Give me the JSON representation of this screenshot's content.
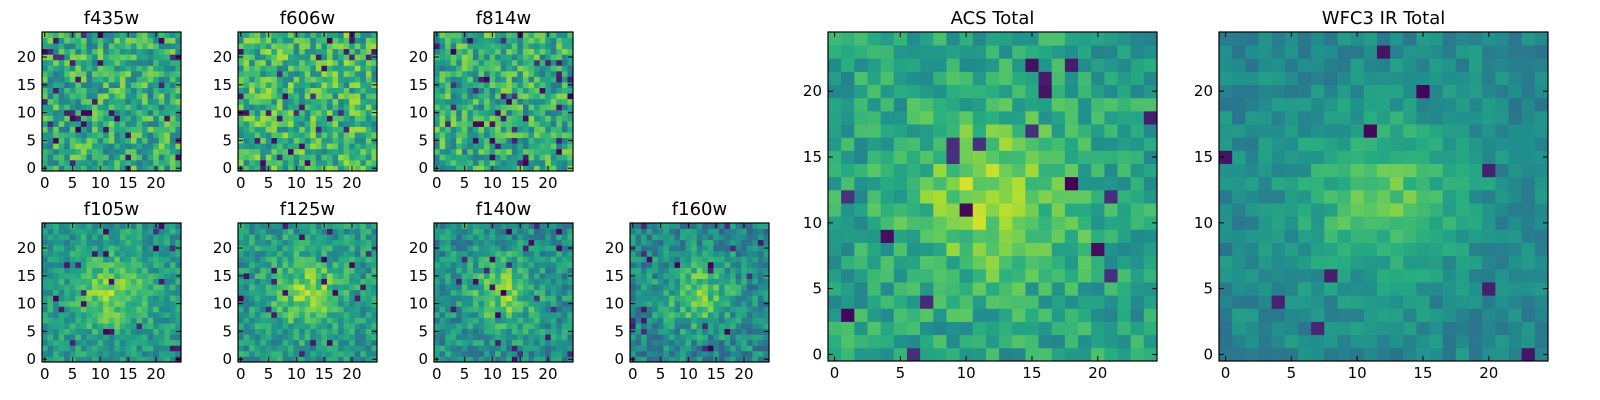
{
  "figure": {
    "colormap": "viridis",
    "palette": [
      "#440154",
      "#472c7a",
      "#3b518b",
      "#2c718e",
      "#21908d",
      "#27ad81",
      "#5cc863",
      "#aadc32",
      "#fde725"
    ]
  },
  "chart_data": [
    {
      "type": "heatmap",
      "title": "f435w",
      "grid_size": 25,
      "xlim": [
        0,
        24
      ],
      "ylim": [
        0,
        24
      ],
      "x_ticks": [
        0,
        5,
        10,
        15,
        20
      ],
      "y_ticks": [
        0,
        5,
        10,
        15,
        20
      ],
      "pattern": "noise",
      "seed": 11,
      "mean_level": 0.62,
      "noise": 0.22,
      "dark_fraction": 0.06
    },
    {
      "type": "heatmap",
      "title": "f606w",
      "grid_size": 25,
      "xlim": [
        0,
        24
      ],
      "ylim": [
        0,
        24
      ],
      "x_ticks": [
        0,
        5,
        10,
        15,
        20
      ],
      "y_ticks": [
        0,
        5,
        10,
        15,
        20
      ],
      "pattern": "noise",
      "seed": 23,
      "mean_level": 0.66,
      "noise": 0.22,
      "dark_fraction": 0.05
    },
    {
      "type": "heatmap",
      "title": "f814w",
      "grid_size": 25,
      "xlim": [
        0,
        24
      ],
      "ylim": [
        0,
        24
      ],
      "x_ticks": [
        0,
        5,
        10,
        15,
        20
      ],
      "y_ticks": [
        0,
        5,
        10,
        15,
        20
      ],
      "pattern": "noise",
      "seed": 37,
      "mean_level": 0.62,
      "noise": 0.22,
      "dark_fraction": 0.06
    },
    {
      "type": "heatmap",
      "title": "f105w",
      "grid_size": 25,
      "xlim": [
        0,
        24
      ],
      "ylim": [
        0,
        24
      ],
      "x_ticks": [
        0,
        5,
        10,
        15,
        20
      ],
      "y_ticks": [
        0,
        5,
        10,
        15,
        20
      ],
      "pattern": "blob",
      "seed": 41,
      "mean_level": 0.62,
      "noise": 0.14,
      "dark_fraction": 0.03
    },
    {
      "type": "heatmap",
      "title": "f125w",
      "grid_size": 25,
      "xlim": [
        0,
        24
      ],
      "ylim": [
        0,
        24
      ],
      "x_ticks": [
        0,
        5,
        10,
        15,
        20
      ],
      "y_ticks": [
        0,
        5,
        10,
        15,
        20
      ],
      "pattern": "blob",
      "seed": 53,
      "mean_level": 0.62,
      "noise": 0.15,
      "dark_fraction": 0.03
    },
    {
      "type": "heatmap",
      "title": "f140w",
      "grid_size": 25,
      "xlim": [
        0,
        24
      ],
      "ylim": [
        0,
        24
      ],
      "x_ticks": [
        0,
        5,
        10,
        15,
        20
      ],
      "y_ticks": [
        0,
        5,
        10,
        15,
        20
      ],
      "pattern": "blob",
      "seed": 67,
      "mean_level": 0.58,
      "noise": 0.16,
      "dark_fraction": 0.04
    },
    {
      "type": "heatmap",
      "title": "f160w",
      "grid_size": 25,
      "xlim": [
        0,
        24
      ],
      "ylim": [
        0,
        24
      ],
      "x_ticks": [
        0,
        5,
        10,
        15,
        20
      ],
      "y_ticks": [
        0,
        5,
        10,
        15,
        20
      ],
      "pattern": "blob",
      "seed": 79,
      "mean_level": 0.55,
      "noise": 0.16,
      "dark_fraction": 0.04
    },
    {
      "type": "heatmap",
      "title": "ACS Total",
      "grid_size": 25,
      "xlim": [
        0,
        24
      ],
      "ylim": [
        0,
        24
      ],
      "x_ticks": [
        0,
        5,
        10,
        15,
        20
      ],
      "y_ticks": [
        0,
        5,
        10,
        15,
        20
      ],
      "pattern": "blob",
      "seed": 97,
      "mean_level": 0.66,
      "noise": 0.14,
      "dark_fraction": 0.03
    },
    {
      "type": "heatmap",
      "title": "WFC3 IR Total",
      "grid_size": 25,
      "xlim": [
        0,
        24
      ],
      "ylim": [
        0,
        24
      ],
      "x_ticks": [
        0,
        5,
        10,
        15,
        20
      ],
      "y_ticks": [
        0,
        5,
        10,
        15,
        20
      ],
      "pattern": "blob",
      "seed": 131,
      "mean_level": 0.55,
      "noise": 0.09,
      "dark_fraction": 0.02
    }
  ]
}
